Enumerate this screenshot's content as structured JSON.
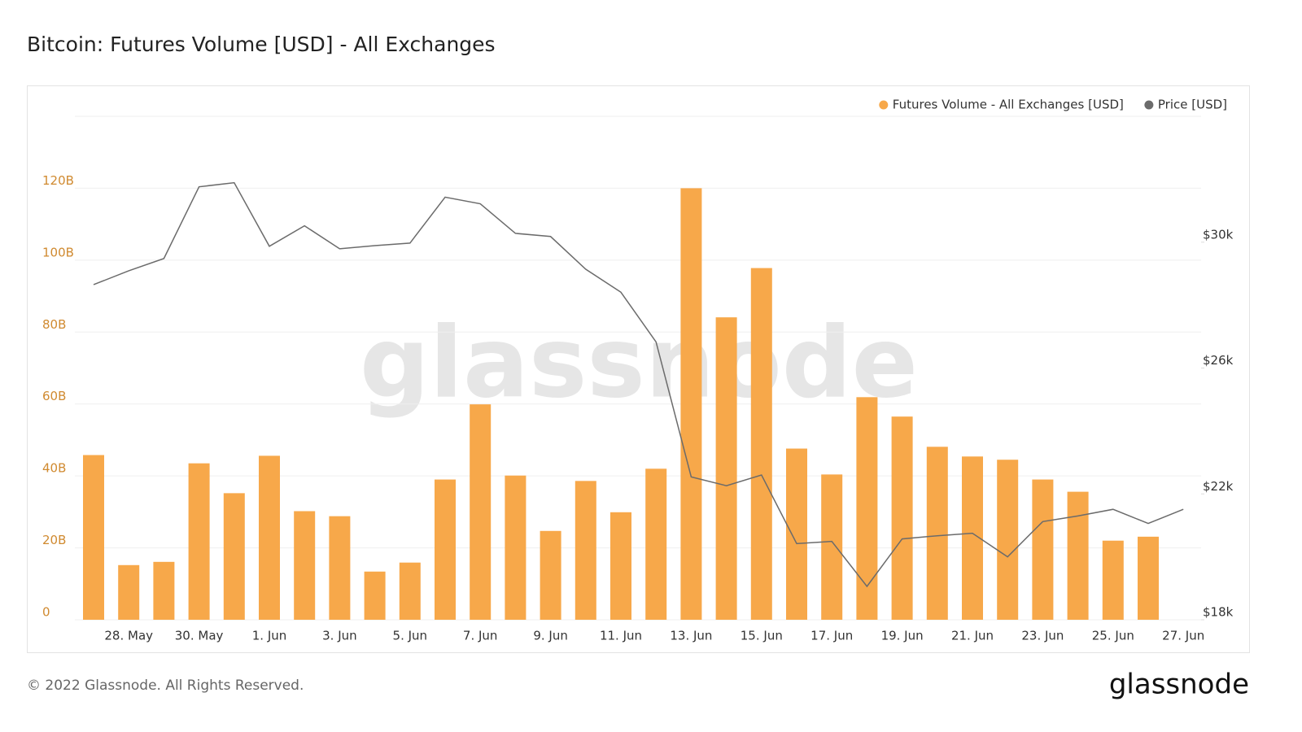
{
  "chart_data": {
    "type": "bar-line",
    "title": "Bitcoin: Futures Volume [USD] - All Exchanges",
    "categories": [
      null,
      "28. May",
      null,
      "30. May",
      null,
      "1. Jun",
      null,
      "3. Jun",
      null,
      "5. Jun",
      null,
      "7. Jun",
      null,
      "9. Jun",
      null,
      "11. Jun",
      null,
      "13. Jun",
      null,
      "15. Jun",
      null,
      "17. Jun",
      null,
      "19. Jun",
      null,
      "21. Jun",
      null,
      "23. Jun",
      null,
      "25. Jun",
      null,
      "27. Jun"
    ],
    "series": [
      {
        "name": "Futures Volume - All Exchanges [USD]",
        "color": "#f7a84a",
        "kind": "bar",
        "values": [
          45.8,
          15.2,
          16.1,
          43.5,
          35.2,
          45.6,
          30.2,
          28.8,
          13.4,
          15.9,
          39.0,
          59.9,
          40.1,
          24.7,
          38.6,
          29.9,
          42.0,
          120.0,
          84.1,
          97.8,
          47.6,
          40.4,
          61.9,
          56.5,
          48.1,
          45.4,
          44.5,
          39.0,
          35.6,
          22.0,
          23.1,
          null
        ]
      },
      {
        "name": "Price [USD]",
        "color": "#6b6b6b",
        "kind": "line",
        "axis": "y2",
        "values": [
          28650,
          29090,
          29480,
          31760,
          31890,
          29870,
          30520,
          29790,
          29890,
          29970,
          31430,
          31220,
          30280,
          30180,
          29140,
          28410,
          26830,
          22540,
          22260,
          22600,
          20420,
          20490,
          19060,
          20570,
          20670,
          20750,
          20000,
          21120,
          21300,
          21510,
          21060,
          21510
        ]
      }
    ],
    "ylim": [
      0,
      140
    ],
    "yticks": [
      {
        "value": 0,
        "label": "0"
      },
      {
        "value": 20,
        "label": "20B"
      },
      {
        "value": 40,
        "label": "40B"
      },
      {
        "value": 60,
        "label": "60B"
      },
      {
        "value": 80,
        "label": "80B"
      },
      {
        "value": 100,
        "label": "100B"
      },
      {
        "value": 120,
        "label": "120B"
      }
    ],
    "y2lim": [
      18000,
      34000
    ],
    "y2ticks": [
      {
        "value": 18000,
        "label": "$18k"
      },
      {
        "value": 22000,
        "label": "$22k"
      },
      {
        "value": 26000,
        "label": "$26k"
      },
      {
        "value": 30000,
        "label": "$30k"
      }
    ],
    "grid": true,
    "legend": "top-right",
    "watermark": "glassnode",
    "footer": "© 2022 Glassnode. All Rights Reserved.",
    "logo": "glassnode"
  }
}
